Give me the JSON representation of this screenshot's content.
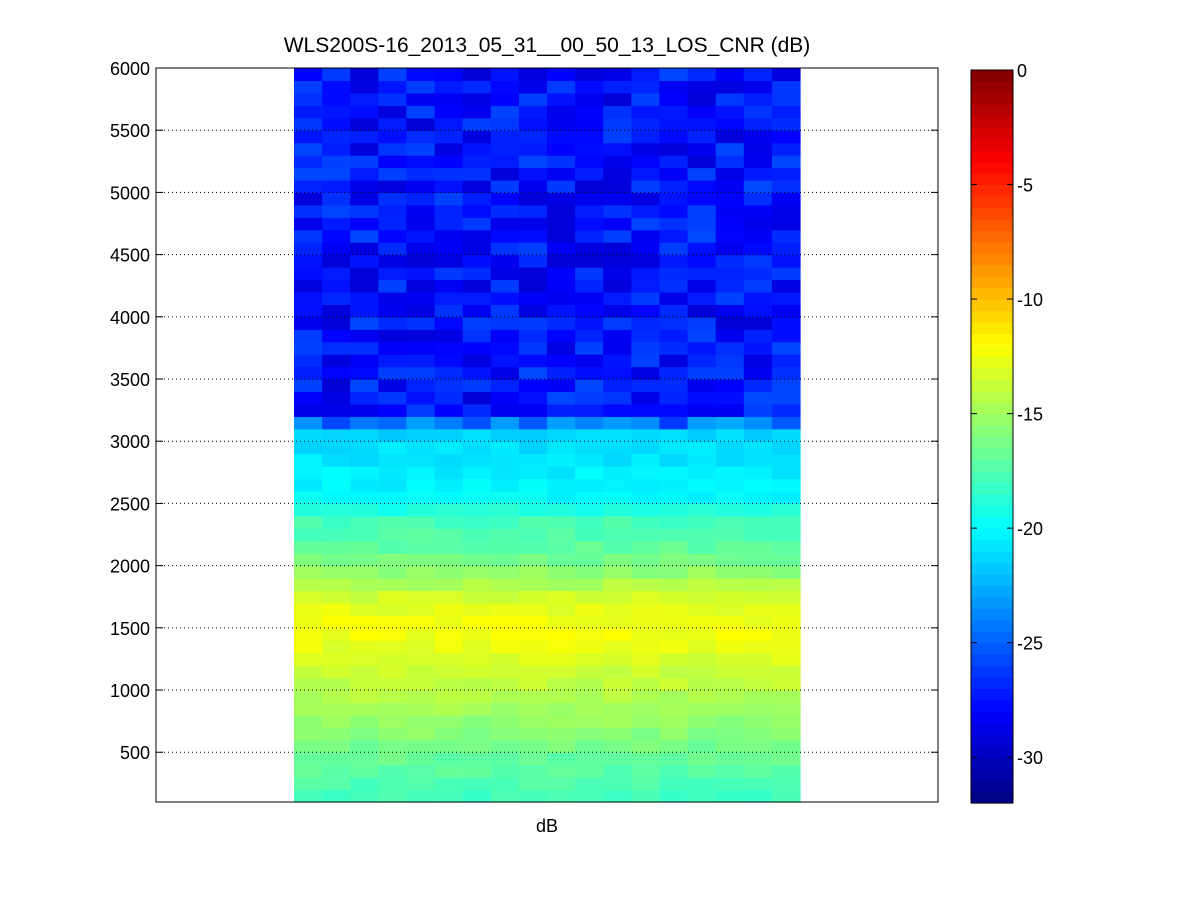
{
  "chart_data": {
    "type": "heatmap",
    "title": "WLS200S-16_2013_05_31__00_50_13_LOS_CNR (dB)",
    "xlabel": "dB",
    "ylabel": "",
    "ylim": [
      100,
      6000
    ],
    "yticks": [
      500,
      1000,
      1500,
      2000,
      2500,
      3000,
      3500,
      4000,
      4500,
      5000,
      5500,
      6000
    ],
    "grid": "horizontal dotted",
    "colormap": "jet",
    "clim": [
      -32,
      0
    ],
    "colorbar_ticks": [
      0,
      -5,
      -10,
      -15,
      -20,
      -25,
      -30
    ],
    "columns": 18,
    "altitude_bins": 59,
    "altitude_step": 100,
    "altitude_start": 100,
    "profile_anchors": [
      {
        "altitude": 100,
        "cnr": -18.2
      },
      {
        "altitude": 200,
        "cnr": -17.8
      },
      {
        "altitude": 400,
        "cnr": -17.0
      },
      {
        "altitude": 700,
        "cnr": -15.6
      },
      {
        "altitude": 1000,
        "cnr": -14.2
      },
      {
        "altitude": 1300,
        "cnr": -13.0
      },
      {
        "altitude": 1500,
        "cnr": -12.2
      },
      {
        "altitude": 1700,
        "cnr": -13.0
      },
      {
        "altitude": 1900,
        "cnr": -15.0
      },
      {
        "altitude": 2100,
        "cnr": -16.8
      },
      {
        "altitude": 2300,
        "cnr": -17.6
      },
      {
        "altitude": 2400,
        "cnr": -18.0
      },
      {
        "altitude": 2500,
        "cnr": -20.0
      },
      {
        "altitude": 2800,
        "cnr": -20.6
      },
      {
        "altitude": 3100,
        "cnr": -21.4
      },
      {
        "altitude": 3200,
        "cnr": -27.5
      },
      {
        "altitude": 6000,
        "cnr": -27.5
      }
    ]
  }
}
